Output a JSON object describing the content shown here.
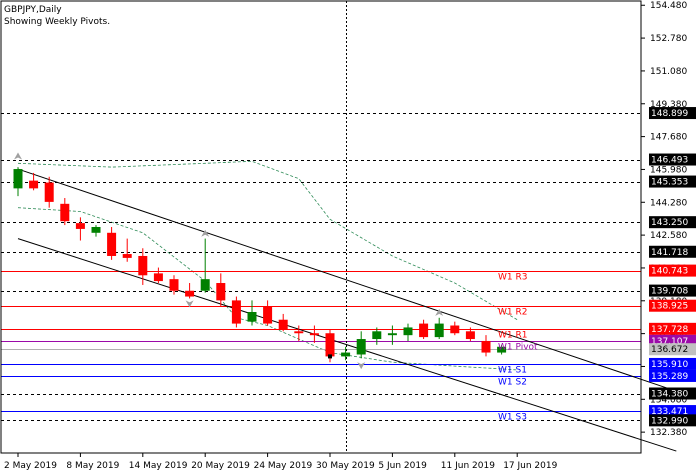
{
  "header": {
    "title": "GBPJPY,Daily",
    "subtitle": "Showing Weekly Pivots."
  },
  "colors": {
    "background": "#ffffff",
    "bull": "#008000",
    "bear": "#ff0000",
    "resistance": "#ff0000",
    "support": "#0000ff",
    "pivot": "#9b0aa8",
    "envelope": "#2e8b57",
    "fractal": "#a0a0a0",
    "grid": "#000000"
  },
  "chart_data": {
    "type": "candlestick",
    "title": "GBPJPY,Daily",
    "subtitle": "Showing Weekly Pivots.",
    "ylim": [
      131.3,
      154.7
    ],
    "x_labels": [
      {
        "label": "2 May 2019",
        "index": 0
      },
      {
        "label": "8 May 2019",
        "index": 4
      },
      {
        "label": "14 May 2019",
        "index": 8
      },
      {
        "label": "20 May 2019",
        "index": 12
      },
      {
        "label": "24 May 2019",
        "index": 16
      },
      {
        "label": "30 May 2019",
        "index": 20
      },
      {
        "label": "5 Jun 2019",
        "index": 24
      },
      {
        "label": "11 Jun 2019",
        "index": 28
      },
      {
        "label": "17 Jun 2019",
        "index": 32
      }
    ],
    "y_ticks": [
      "154.480",
      "152.780",
      "151.080",
      "149.380",
      "147.680",
      "145.980",
      "144.280",
      "142.580",
      "140.880",
      "139.180",
      "137.480",
      "135.780",
      "134.080",
      "132.380"
    ],
    "candles": [
      {
        "o": 145.0,
        "h": 146.1,
        "l": 144.6,
        "c": 146.0
      },
      {
        "o": 145.4,
        "h": 145.8,
        "l": 144.9,
        "c": 145.0
      },
      {
        "o": 145.3,
        "h": 145.6,
        "l": 144.0,
        "c": 144.3
      },
      {
        "o": 144.2,
        "h": 144.5,
        "l": 143.1,
        "c": 143.3
      },
      {
        "o": 143.2,
        "h": 143.5,
        "l": 142.3,
        "c": 142.9
      },
      {
        "o": 142.7,
        "h": 143.1,
        "l": 142.5,
        "c": 143.0
      },
      {
        "o": 142.7,
        "h": 143.0,
        "l": 141.3,
        "c": 141.5
      },
      {
        "o": 141.6,
        "h": 142.4,
        "l": 141.2,
        "c": 141.4
      },
      {
        "o": 141.5,
        "h": 141.9,
        "l": 140.0,
        "c": 140.5
      },
      {
        "o": 140.6,
        "h": 140.9,
        "l": 140.1,
        "c": 140.2
      },
      {
        "o": 140.3,
        "h": 140.5,
        "l": 139.5,
        "c": 139.7
      },
      {
        "o": 139.7,
        "h": 140.1,
        "l": 139.3,
        "c": 139.4
      },
      {
        "o": 139.7,
        "h": 142.4,
        "l": 139.6,
        "c": 140.3
      },
      {
        "o": 140.1,
        "h": 140.6,
        "l": 138.9,
        "c": 139.2
      },
      {
        "o": 139.2,
        "h": 139.4,
        "l": 137.8,
        "c": 138.0
      },
      {
        "o": 138.1,
        "h": 139.2,
        "l": 137.9,
        "c": 138.6
      },
      {
        "o": 138.9,
        "h": 139.2,
        "l": 137.9,
        "c": 138.0
      },
      {
        "o": 138.2,
        "h": 138.5,
        "l": 137.6,
        "c": 137.7
      },
      {
        "o": 137.6,
        "h": 137.9,
        "l": 137.1,
        "c": 137.5
      },
      {
        "o": 137.5,
        "h": 137.9,
        "l": 137.0,
        "c": 137.4
      },
      {
        "o": 137.5,
        "h": 137.7,
        "l": 136.0,
        "c": 136.3
      },
      {
        "o": 136.3,
        "h": 136.8,
        "l": 136.1,
        "c": 136.5
      },
      {
        "o": 136.4,
        "h": 137.6,
        "l": 136.2,
        "c": 137.2
      },
      {
        "o": 137.2,
        "h": 137.8,
        "l": 136.9,
        "c": 137.6
      },
      {
        "o": 137.4,
        "h": 137.9,
        "l": 136.9,
        "c": 137.5
      },
      {
        "o": 137.4,
        "h": 138.0,
        "l": 137.1,
        "c": 137.8
      },
      {
        "o": 138.0,
        "h": 138.2,
        "l": 137.2,
        "c": 137.3
      },
      {
        "o": 137.3,
        "h": 138.3,
        "l": 137.2,
        "c": 138.0
      },
      {
        "o": 137.9,
        "h": 138.1,
        "l": 137.4,
        "c": 137.5
      },
      {
        "o": 137.6,
        "h": 137.8,
        "l": 137.1,
        "c": 137.2
      },
      {
        "o": 137.1,
        "h": 137.4,
        "l": 136.3,
        "c": 136.5
      },
      {
        "o": 136.5,
        "h": 136.9,
        "l": 136.4,
        "c": 136.8
      }
    ],
    "channel": {
      "upper": [
        [
          0,
          146.0
        ],
        [
          42.2,
          134.5
        ]
      ],
      "lower": [
        [
          0,
          142.4
        ],
        [
          42.2,
          131.4
        ]
      ]
    },
    "envelope_upper": [
      [
        0,
        146.3
      ],
      [
        6,
        146.1
      ],
      [
        12,
        146.3
      ],
      [
        15,
        146.4
      ],
      [
        18,
        145.5
      ],
      [
        20,
        143.4
      ],
      [
        24,
        141.5
      ],
      [
        28,
        140.1
      ],
      [
        32,
        138.2
      ]
    ],
    "envelope_lower": [
      [
        0,
        144.0
      ],
      [
        4,
        143.8
      ],
      [
        8,
        142.7
      ],
      [
        12,
        140.2
      ],
      [
        14,
        138.3
      ],
      [
        16,
        137.9
      ],
      [
        20,
        136.5
      ],
      [
        24,
        136.0
      ],
      [
        28,
        135.8
      ],
      [
        32,
        135.6
      ]
    ],
    "fractals": [
      {
        "index": 0,
        "price": 146.6,
        "dir": "up"
      },
      {
        "index": 12,
        "price": 142.6,
        "dir": "up"
      },
      {
        "index": 11,
        "price": 139.1,
        "dir": "down"
      },
      {
        "index": 27,
        "price": 138.5,
        "dir": "up"
      },
      {
        "index": 22,
        "price": 135.9,
        "dir": "down"
      }
    ],
    "current_marker": {
      "index": 20,
      "price": 136.3
    },
    "vertical_line_index": 21,
    "pivot_lines": [
      {
        "label": "W1 R3",
        "price": 140.743,
        "kind": "resistance"
      },
      {
        "label": "W1 R2",
        "price": 138.925,
        "kind": "resistance"
      },
      {
        "label": "W1 R1",
        "price": 137.728,
        "kind": "resistance"
      },
      {
        "label": "W1 Pivot",
        "price": 137.107,
        "kind": "pivot"
      },
      {
        "label": "W1 S1",
        "price": 135.91,
        "kind": "support"
      },
      {
        "label": "W1 S2",
        "price": 135.289,
        "kind": "support"
      },
      {
        "label": "W1 S3",
        "price": 133.471,
        "kind": "support"
      }
    ],
    "price_level_lines": [
      148.899,
      146.493,
      145.353,
      143.25,
      141.718,
      139.708,
      134.38,
      132.99
    ],
    "current_price": {
      "value": 136.672,
      "label": "136.672"
    },
    "level_labels": [
      {
        "text": "148.899",
        "value": 148.899,
        "style": "black"
      },
      {
        "text": "146.493",
        "value": 146.493,
        "style": "black"
      },
      {
        "text": "145.353",
        "value": 145.353,
        "style": "black"
      },
      {
        "text": "143.250",
        "value": 143.25,
        "style": "black"
      },
      {
        "text": "141.718",
        "value": 141.718,
        "style": "black"
      },
      {
        "text": "140.743",
        "value": 140.743,
        "style": "red"
      },
      {
        "text": "139.708",
        "value": 139.708,
        "style": "black"
      },
      {
        "text": "138.925",
        "value": 138.925,
        "style": "red"
      },
      {
        "text": "137.728",
        "value": 137.728,
        "style": "red"
      },
      {
        "text": "137.107",
        "value": 137.107,
        "style": "purple"
      },
      {
        "text": "136.672",
        "value": 136.672,
        "style": "gray"
      },
      {
        "text": "135.910",
        "value": 135.91,
        "style": "blue"
      },
      {
        "text": "135.289",
        "value": 135.289,
        "style": "blue"
      },
      {
        "text": "134.380",
        "value": 134.38,
        "style": "black"
      },
      {
        "text": "133.471",
        "value": 133.471,
        "style": "blue"
      },
      {
        "text": "132.990",
        "value": 132.99,
        "style": "black"
      }
    ]
  }
}
